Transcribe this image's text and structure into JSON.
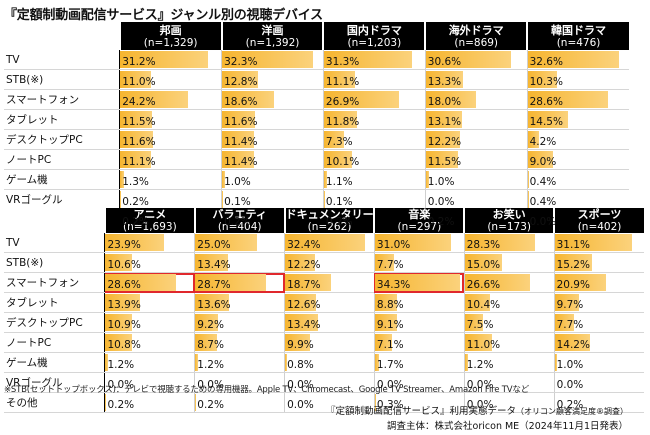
{
  "title": "『定額制動画配信サービス』ジャンル別の視聴デバイス",
  "footnote": "※STB(セットトップボックス)：テレビで視聴するための専用機器。Apple TV、Chromecast、Google TV Streamer、Amazon Fire TVなど",
  "source_main": "『定額制動画配信サービス』利用実態データ",
  "source_sub": "（オリコン顧客満足度®調査）",
  "source_org": "調査主体：株式会社oricon ME（2024年11月1日発表）",
  "chart_data": [
    {
      "type": "table",
      "rows": [
        "TV",
        "STB(※)",
        "スマートフォン",
        "タブレット",
        "デスクトップPC",
        "ノートPC",
        "ゲーム機",
        "VRゴーグル",
        "その他"
      ],
      "series": [
        {
          "name": "邦画",
          "n": "(n=1,329)",
          "values": [
            31.2,
            11.0,
            24.2,
            11.5,
            11.6,
            11.1,
            1.3,
            0.2,
            0.2
          ]
        },
        {
          "name": "洋画",
          "n": "(n=1,392)",
          "values": [
            32.3,
            12.8,
            18.6,
            11.6,
            11.4,
            11.4,
            1.0,
            0.1,
            0.2
          ]
        },
        {
          "name": "国内ドラマ",
          "n": "(n=1,203)",
          "values": [
            31.3,
            11.1,
            26.9,
            11.8,
            7.3,
            10.1,
            1.1,
            0.1,
            0.2
          ]
        },
        {
          "name": "海外ドラマ",
          "n": "(n=869)",
          "values": [
            30.6,
            13.3,
            18.0,
            13.1,
            12.2,
            11.5,
            1.0,
            0.0,
            0.2
          ]
        },
        {
          "name": "韓国ドラマ",
          "n": "(n=476)",
          "values": [
            32.6,
            10.3,
            28.6,
            14.5,
            4.2,
            9.0,
            0.4,
            0.4,
            0.0
          ]
        }
      ],
      "max": 36
    },
    {
      "type": "table",
      "rows": [
        "TV",
        "STB(※)",
        "スマートフォン",
        "タブレット",
        "デスクトップPC",
        "ノートPC",
        "ゲーム機",
        "VRゴーグル",
        "その他"
      ],
      "series": [
        {
          "name": "アニメ",
          "n": "(n=1,693)",
          "values": [
            23.9,
            10.6,
            28.6,
            13.9,
            10.9,
            10.8,
            1.2,
            0.0,
            0.2
          ]
        },
        {
          "name": "バラエティ",
          "n": "(n=404)",
          "values": [
            25.0,
            13.4,
            28.7,
            13.6,
            9.2,
            8.7,
            1.2,
            0.0,
            0.2
          ]
        },
        {
          "name": "ドキュメンタリー",
          "n": "(n=262)",
          "values": [
            32.4,
            12.2,
            18.7,
            12.6,
            13.4,
            9.9,
            0.8,
            0.0,
            0.0
          ]
        },
        {
          "name": "音楽",
          "n": "(n=297)",
          "values": [
            31.0,
            7.7,
            34.3,
            8.8,
            9.1,
            7.1,
            1.7,
            0.0,
            0.3
          ]
        },
        {
          "name": "お笑い",
          "n": "(n=173)",
          "values": [
            28.3,
            15.0,
            26.6,
            10.4,
            7.5,
            11.0,
            1.2,
            0.0,
            0.0
          ]
        },
        {
          "name": "スポーツ",
          "n": "(n=402)",
          "values": [
            31.1,
            15.2,
            20.9,
            9.7,
            7.7,
            14.2,
            1.0,
            0.0,
            0.2
          ]
        }
      ],
      "highlight": {
        "row": 2,
        "cols": [
          0,
          1,
          3
        ]
      },
      "highlight_color": "#e0282d",
      "max": 36
    }
  ],
  "colors": {
    "bar": "#f6b530",
    "header": "#000000",
    "highlight": "#e0282d"
  }
}
